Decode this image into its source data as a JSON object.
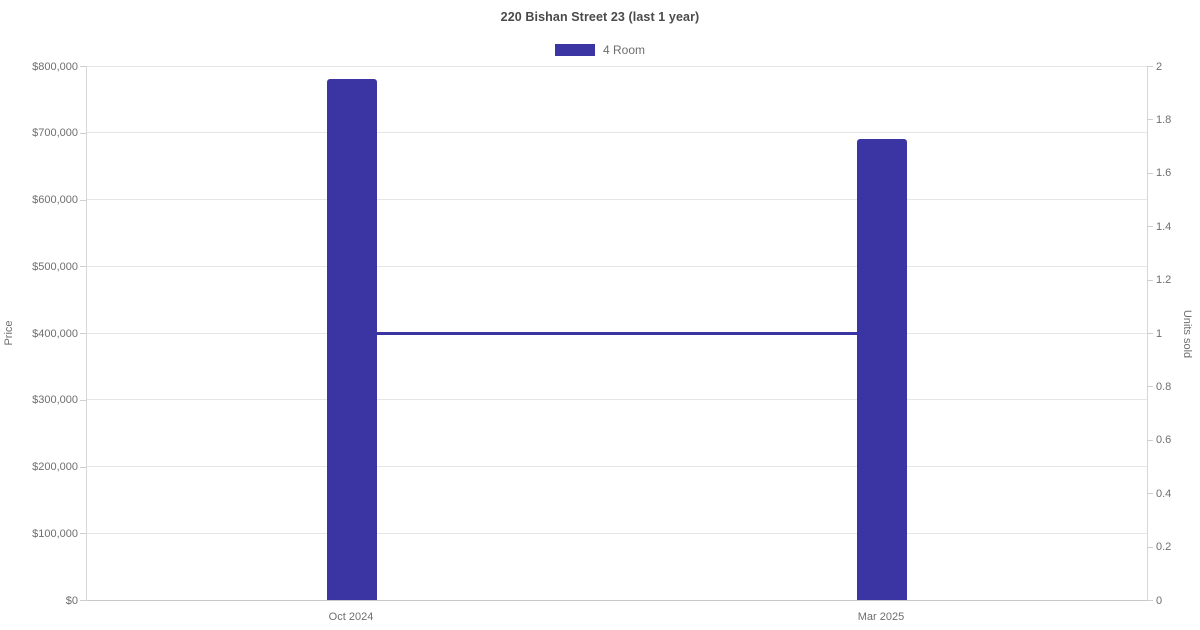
{
  "chart_data": {
    "type": "bar",
    "title": "220 Bishan Street 23 (last 1 year)",
    "categories": [
      "Oct 2024",
      "Mar 2025"
    ],
    "series": [
      {
        "name": "4 Room",
        "type": "bar",
        "yaxis": "left",
        "values": [
          780000,
          690000
        ]
      },
      {
        "name": "4 Room",
        "type": "line",
        "yaxis": "right",
        "values": [
          1,
          1
        ]
      }
    ],
    "axes": {
      "left": {
        "label": "Price",
        "min": 0,
        "max": 800000,
        "ticks": [
          "$0",
          "$100,000",
          "$200,000",
          "$300,000",
          "$400,000",
          "$500,000",
          "$600,000",
          "$700,000",
          "$800,000"
        ]
      },
      "right": {
        "label": "Units sold",
        "min": 0,
        "max": 2,
        "ticks": [
          "0",
          "0.2",
          "0.4",
          "0.6",
          "0.8",
          "1",
          "1.2",
          "1.4",
          "1.6",
          "1.8",
          "2"
        ]
      }
    },
    "legend": {
      "position": "top",
      "items": [
        {
          "label": "4 Room",
          "color": "#3a35a3"
        }
      ]
    },
    "grid": true,
    "colors": {
      "accent": "#3a35a3",
      "gridline": "#e6e6e6",
      "axis_line": "#c9c9c9",
      "tick_text": "#6e6e6e",
      "title_text": "#4a4a4a"
    }
  }
}
